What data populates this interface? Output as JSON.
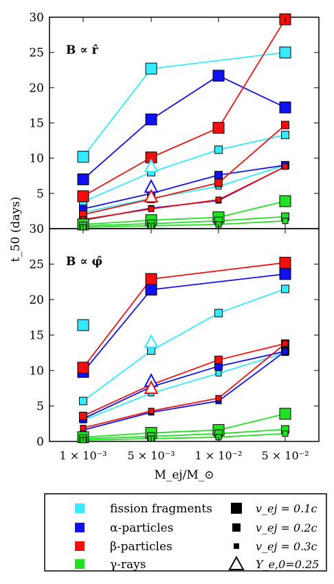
{
  "chart_data": {
    "type": "scatter",
    "ylabel": "t_50 (days)",
    "xlabel": "M_ej/M_⊙",
    "x_categories": [
      "1 × 10⁻³",
      "5 × 10⁻³",
      "1 × 10⁻²",
      "5 × 10⁻²"
    ],
    "ylim": [
      0,
      30
    ],
    "yticks": [
      0,
      5,
      10,
      15,
      20,
      25,
      30
    ],
    "colors": {
      "fission fragments": "#33eaff",
      "alpha-particles": "#1010f0",
      "beta-particles": "#f01010",
      "gamma-rays": "#22e022"
    },
    "panels": [
      {
        "label_main": "B ∝ r̂",
        "series": [
          {
            "species": "fission fragments",
            "v": 0.1,
            "values": [
              10.2,
              22.7,
              null,
              25.0
            ]
          },
          {
            "species": "fission fragments",
            "v": 0.2,
            "values": [
              3.8,
              8.0,
              11.2,
              13.3
            ]
          },
          {
            "species": "fission fragments",
            "v": 0.3,
            "values": [
              2.3,
              4.3,
              6.0,
              9.0
            ]
          },
          {
            "species": "alpha-particles",
            "v": 0.1,
            "values": [
              7.0,
              15.5,
              21.7,
              17.2
            ]
          },
          {
            "species": "alpha-particles",
            "v": 0.2,
            "values": [
              2.8,
              5.0,
              7.6,
              9.0
            ]
          },
          {
            "species": "alpha-particles",
            "v": 0.3,
            "values": [
              1.2,
              2.9,
              4.0,
              8.8
            ]
          },
          {
            "species": "beta-particles",
            "v": 0.1,
            "values": [
              4.6,
              10.1,
              14.3,
              29.7
            ]
          },
          {
            "species": "beta-particles",
            "v": 0.2,
            "values": [
              2.0,
              4.2,
              6.5,
              14.7
            ]
          },
          {
            "species": "beta-particles",
            "v": 0.3,
            "values": [
              1.3,
              2.8,
              4.1,
              8.8
            ]
          },
          {
            "species": "gamma-rays",
            "v": 0.1,
            "values": [
              0.6,
              1.2,
              1.6,
              3.9
            ]
          },
          {
            "species": "gamma-rays",
            "v": 0.2,
            "values": [
              0.4,
              0.7,
              1.1,
              1.7
            ]
          },
          {
            "species": "gamma-rays",
            "v": 0.3,
            "values": [
              0.2,
              0.4,
              0.6,
              1.1
            ]
          }
        ],
        "ye_points": [
          {
            "species": "fission fragments",
            "x": 1,
            "y": 8.8
          },
          {
            "species": "alpha-particles",
            "x": 1,
            "y": 5.9
          },
          {
            "species": "beta-particles",
            "x": 1,
            "y": 4.5
          }
        ]
      },
      {
        "label_main": "B ∝ φ̂",
        "series": [
          {
            "species": "fission fragments",
            "v": 0.1,
            "values": [
              16.4,
              null,
              null,
              null
            ]
          },
          {
            "species": "fission fragments",
            "v": 0.2,
            "values": [
              5.7,
              12.8,
              18.1,
              21.5
            ]
          },
          {
            "species": "fission fragments",
            "v": 0.3,
            "values": [
              3.0,
              6.8,
              9.6,
              12.5
            ]
          },
          {
            "species": "alpha-particles",
            "v": 0.1,
            "values": [
              9.8,
              21.4,
              null,
              23.6
            ]
          },
          {
            "species": "alpha-particles",
            "v": 0.2,
            "values": [
              3.2,
              7.7,
              10.6,
              12.7
            ]
          },
          {
            "species": "alpha-particles",
            "v": 0.3,
            "values": [
              1.6,
              4.1,
              5.7,
              12.7
            ]
          },
          {
            "species": "beta-particles",
            "v": 0.1,
            "values": [
              10.4,
              22.9,
              null,
              25.2
            ]
          },
          {
            "species": "beta-particles",
            "v": 0.2,
            "values": [
              3.6,
              8.0,
              11.5,
              13.8
            ]
          },
          {
            "species": "beta-particles",
            "v": 0.3,
            "values": [
              1.9,
              4.3,
              6.1,
              13.8
            ]
          },
          {
            "species": "gamma-rays",
            "v": 0.1,
            "values": [
              0.6,
              1.2,
              1.6,
              3.9
            ]
          },
          {
            "species": "gamma-rays",
            "v": 0.2,
            "values": [
              0.4,
              0.7,
              1.1,
              1.7
            ]
          },
          {
            "species": "gamma-rays",
            "v": 0.3,
            "values": [
              0.2,
              0.4,
              0.6,
              1.1
            ]
          }
        ],
        "ye_points": [
          {
            "species": "fission fragments",
            "x": 1,
            "y": 14.0
          },
          {
            "species": "alpha-particles",
            "x": 1,
            "y": 8.5
          },
          {
            "species": "beta-particles",
            "x": 1,
            "y": 7.5
          }
        ]
      }
    ],
    "legend": {
      "placement": "bottom",
      "species_labels": [
        "fission fragments",
        "α-particles",
        "β-particles",
        "γ-rays"
      ],
      "marker_labels": [
        "v_ej = 0.1c",
        "v_ej = 0.2c",
        "v_ej = 0.3c",
        "Y_e,0=0.25"
      ]
    }
  }
}
